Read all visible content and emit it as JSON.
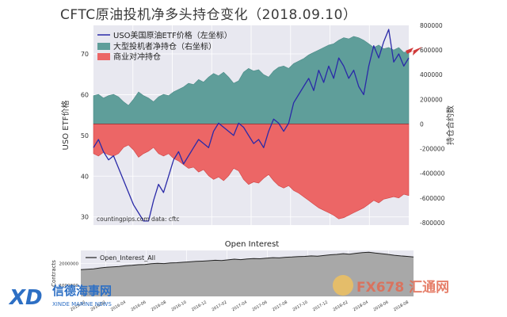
{
  "title": "CFTC原油投机净多头持仓变化（2018.09.10）",
  "chart_data": [
    {
      "type": "line",
      "legend": {
        "placement": "top-left",
        "entries": [
          "USO美国原油ETF价格（左坐标）",
          "大型投机者净持仓（右坐标）",
          "商业对冲持仓"
        ]
      },
      "ylabel_left": "USO ETF价格",
      "ylabel_right": "持仓合约数",
      "left_ticks": [
        "70",
        "60",
        "50",
        "40",
        "30"
      ],
      "right_ticks": [
        "800000",
        "600000",
        "400000",
        "200000",
        "0",
        "-200000",
        "-400000",
        "-600000",
        "-800000"
      ],
      "ylim_left": [
        28,
        77
      ],
      "ylim_right": [
        -820000,
        800000
      ],
      "grid": true,
      "colors": {
        "price": "#2a2aa8",
        "spec": "#5f9e9a",
        "comm": "#ec6666",
        "background": "#e8e8f0"
      },
      "annotation": "countingpips.com    data: cftc",
      "series": [
        {
          "name": "USO美国原油ETF价格（左坐标）",
          "values": [
            47,
            49,
            46,
            44,
            45,
            42,
            39,
            36,
            33,
            31,
            29,
            29,
            34,
            38,
            36,
            40,
            44,
            46,
            43,
            45,
            47,
            49,
            48,
            47,
            51,
            53,
            52,
            51,
            50,
            53,
            52,
            50,
            48,
            49,
            47,
            51,
            54,
            53,
            51,
            53,
            58,
            60,
            62,
            64,
            61,
            66,
            63,
            67,
            64,
            69,
            67,
            64,
            66,
            62,
            60,
            67,
            72,
            69,
            73,
            76,
            68,
            70,
            67,
            69
          ]
        },
        {
          "name": "大型投机者净持仓（右坐标）",
          "values": [
            230000,
            240000,
            210000,
            230000,
            240000,
            220000,
            180000,
            150000,
            200000,
            260000,
            230000,
            210000,
            180000,
            220000,
            240000,
            230000,
            260000,
            280000,
            300000,
            330000,
            320000,
            360000,
            340000,
            380000,
            410000,
            390000,
            420000,
            380000,
            330000,
            350000,
            420000,
            450000,
            430000,
            440000,
            400000,
            380000,
            430000,
            460000,
            470000,
            450000,
            490000,
            510000,
            530000,
            560000,
            580000,
            600000,
            620000,
            640000,
            650000,
            680000,
            700000,
            690000,
            710000,
            700000,
            680000,
            650000,
            620000,
            640000,
            610000,
            620000,
            600000,
            620000,
            580000,
            590000
          ]
        },
        {
          "name": "商业对冲持仓",
          "values": [
            -240000,
            -260000,
            -230000,
            -250000,
            -260000,
            -240000,
            -190000,
            -170000,
            -210000,
            -270000,
            -240000,
            -220000,
            -190000,
            -240000,
            -260000,
            -240000,
            -280000,
            -300000,
            -330000,
            -360000,
            -350000,
            -390000,
            -370000,
            -420000,
            -450000,
            -430000,
            -460000,
            -420000,
            -360000,
            -380000,
            -450000,
            -490000,
            -470000,
            -480000,
            -440000,
            -410000,
            -460000,
            -500000,
            -520000,
            -500000,
            -540000,
            -560000,
            -590000,
            -620000,
            -650000,
            -680000,
            -700000,
            -720000,
            -740000,
            -770000,
            -760000,
            -740000,
            -720000,
            -700000,
            -680000,
            -650000,
            -620000,
            -640000,
            -610000,
            -600000,
            -590000,
            -600000,
            -570000,
            -580000
          ]
        }
      ]
    },
    {
      "type": "area",
      "title": "Open Interest",
      "ylabel": "Contracts",
      "y_ticks": [
        "2000000",
        "1000000"
      ],
      "ylim": [
        500000,
        2600000
      ],
      "x_tick_labels": [
        "2015-12",
        "2016-02",
        "2016-04",
        "2016-06",
        "2016-08",
        "2016-10",
        "2016-12",
        "2017-02",
        "2017-04",
        "2017-06",
        "2017-08",
        "2017-10",
        "2017-12",
        "2018-02",
        "2018-04",
        "2018-06",
        "2018-08"
      ],
      "legend": [
        "Open_Interest_All"
      ],
      "series": [
        {
          "name": "Open_Interest_All",
          "values": [
            1720000,
            1740000,
            1760000,
            1800000,
            1830000,
            1850000,
            1870000,
            1900000,
            1920000,
            1950000,
            1960000,
            1990000,
            2010000,
            2000000,
            2030000,
            2040000,
            2060000,
            2080000,
            2100000,
            2110000,
            2130000,
            2150000,
            2140000,
            2170000,
            2200000,
            2180000,
            2210000,
            2230000,
            2220000,
            2250000,
            2270000,
            2260000,
            2290000,
            2300000,
            2320000,
            2330000,
            2350000,
            2340000,
            2370000,
            2400000,
            2420000,
            2450000,
            2430000,
            2470000,
            2500000,
            2520000,
            2480000,
            2450000,
            2420000,
            2380000,
            2350000,
            2330000,
            2300000
          ]
        }
      ]
    }
  ],
  "watermarks": {
    "left_logo_text": "信德海事网",
    "left_logo_sub": "XINDE MARINE NEWS",
    "right_logo_text": "FX678 汇通网"
  }
}
